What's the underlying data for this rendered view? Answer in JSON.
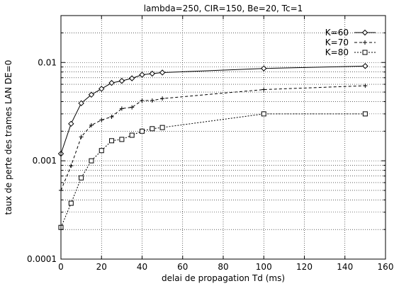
{
  "chart_data": {
    "type": "line",
    "title": "lambda=250, CIR=150, Be=20, Tc=1",
    "xlabel": "delai de propagation Td (ms)",
    "ylabel": "taux de perte des trames LAN DE=0",
    "xlim": [
      0,
      160
    ],
    "ylim": [
      0.0001,
      0.03
    ],
    "yscale": "log",
    "grid": true,
    "legend_position": "top-right",
    "x_ticks": [
      0,
      20,
      40,
      60,
      80,
      100,
      120,
      140,
      160
    ],
    "x_tick_labels": [
      "0",
      "20",
      "40",
      "60",
      "80",
      "100",
      "120",
      "140",
      "160"
    ],
    "y_ticks": [
      0.0001,
      0.001,
      0.01
    ],
    "y_tick_labels": [
      "0.0001",
      "0.001",
      "0.01"
    ],
    "series": [
      {
        "name": "K=60",
        "style": "solid",
        "marker": "diamond",
        "x": [
          0,
          5,
          10,
          15,
          20,
          25,
          30,
          35,
          40,
          45,
          50,
          100,
          150
        ],
        "y": [
          0.00118,
          0.00238,
          0.00385,
          0.0047,
          0.0054,
          0.0062,
          0.0065,
          0.0069,
          0.0075,
          0.0077,
          0.0079,
          0.0087,
          0.0092
        ]
      },
      {
        "name": "K=70",
        "style": "dashed",
        "marker": "plus",
        "x": [
          0,
          5,
          10,
          15,
          20,
          25,
          30,
          35,
          40,
          45,
          50,
          100,
          150
        ],
        "y": [
          0.0005,
          0.00089,
          0.00175,
          0.0023,
          0.0026,
          0.0028,
          0.0034,
          0.0035,
          0.0041,
          0.0041,
          0.0043,
          0.0053,
          0.0058
        ]
      },
      {
        "name": "K=80",
        "style": "dotted",
        "marker": "square",
        "x": [
          0,
          5,
          10,
          15,
          20,
          25,
          30,
          35,
          40,
          45,
          50,
          100,
          150
        ],
        "y": [
          0.00021,
          0.00037,
          0.00067,
          0.001,
          0.00127,
          0.0016,
          0.00165,
          0.00182,
          0.002,
          0.00212,
          0.00218,
          0.003,
          0.003
        ]
      }
    ]
  }
}
